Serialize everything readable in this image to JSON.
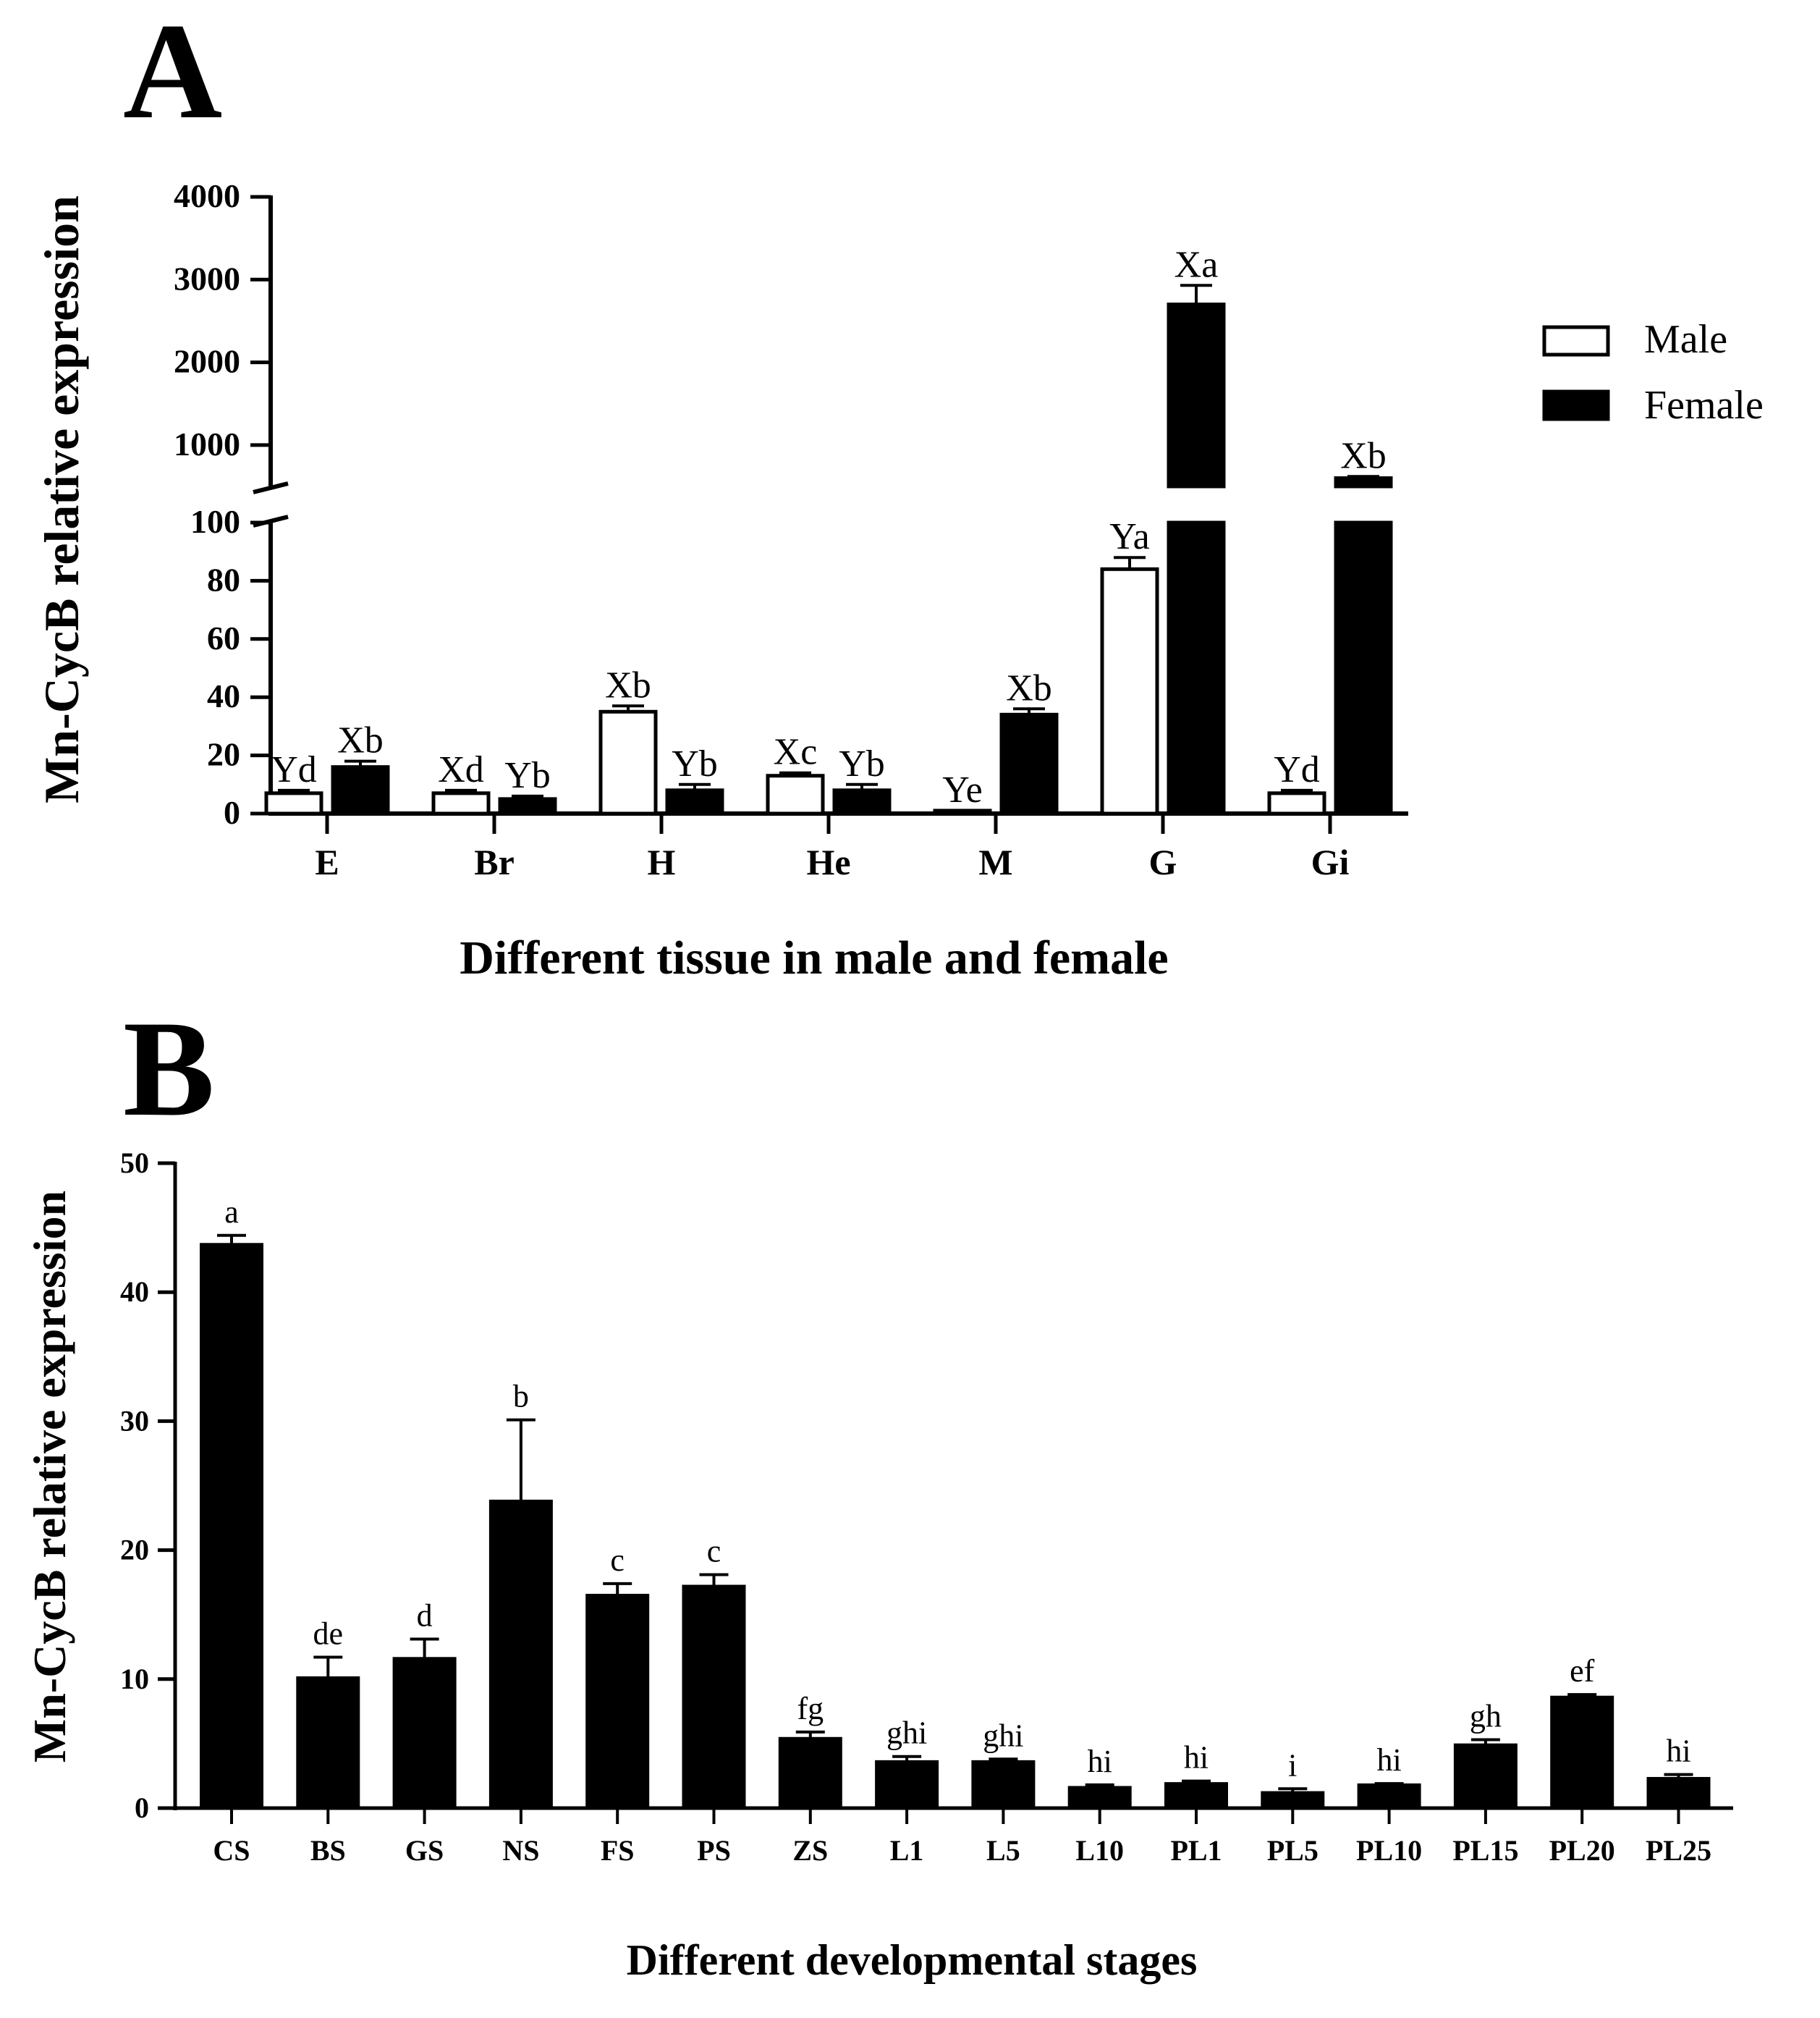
{
  "panel_labels": {
    "a": "A",
    "b": "B"
  },
  "colors": {
    "ink": "#000000",
    "male_fill": "#ffffff",
    "female_fill": "#000000"
  },
  "chart_data": [
    {
      "type": "bar",
      "title": "",
      "ylabel": "Mn-CycB relative expression",
      "xlabel": "Different tissue in male and female",
      "categories": [
        "E",
        "Br",
        "H",
        "He",
        "M",
        "G",
        "Gi"
      ],
      "axis_break": {
        "lower_range": [
          0,
          100
        ],
        "lower_ticks": [
          "0",
          "20",
          "40",
          "60",
          "80",
          "100"
        ],
        "upper_range": [
          500,
          4000
        ],
        "upper_ticks": [
          "1000",
          "2000",
          "3000",
          "4000"
        ]
      },
      "legend": {
        "position": "top-right",
        "entries": [
          {
            "name": "Male",
            "fill": "#ffffff"
          },
          {
            "name": "Female",
            "fill": "#000000"
          }
        ]
      },
      "series": [
        {
          "name": "Male",
          "values": [
            7,
            7,
            35,
            13,
            1,
            84,
            7
          ],
          "errors": [
            1,
            1,
            2,
            1,
            0,
            4,
            1
          ],
          "labels": [
            "Yd",
            "Xd",
            "Xb",
            "Xc",
            "Ye",
            "Ya",
            "Yd"
          ]
        },
        {
          "name": "Female",
          "values": [
            16,
            5,
            8,
            8,
            34,
            2700,
            600
          ],
          "errors": [
            2,
            1,
            2,
            2,
            2,
            230,
            20
          ],
          "labels": [
            "Xb",
            "Yb",
            "Yb",
            "Yb",
            "Xb",
            "Xa",
            "Xb"
          ]
        }
      ]
    },
    {
      "type": "bar",
      "title": "",
      "ylabel": "Mn-CycB relative expression",
      "xlabel": "Different developmental stages",
      "ylim": [
        0,
        50
      ],
      "yticks": [
        "0",
        "10",
        "20",
        "30",
        "40",
        "50"
      ],
      "categories": [
        "CS",
        "BS",
        "GS",
        "NS",
        "FS",
        "PS",
        "ZS",
        "L1",
        "L5",
        "L10",
        "PL1",
        "PL5",
        "PL10",
        "PL15",
        "PL20",
        "PL25"
      ],
      "series": [
        {
          "name": "Expression",
          "values": [
            43.7,
            10.1,
            11.6,
            23.8,
            16.5,
            17.2,
            5.4,
            3.6,
            3.6,
            1.6,
            1.9,
            1.2,
            1.8,
            4.9,
            8.6,
            2.3
          ],
          "errors": [
            0.7,
            1.6,
            1.5,
            6.3,
            0.9,
            0.9,
            0.5,
            0.4,
            0.2,
            0.2,
            0.2,
            0.3,
            0.1,
            0.4,
            0.2,
            0.3
          ],
          "labels": [
            "a",
            "de",
            "d",
            "b",
            "c",
            "c",
            "fg",
            "ghi",
            "ghi",
            "hi",
            "hi",
            "i",
            "hi",
            "gh",
            "ef",
            "hi"
          ]
        }
      ]
    }
  ]
}
